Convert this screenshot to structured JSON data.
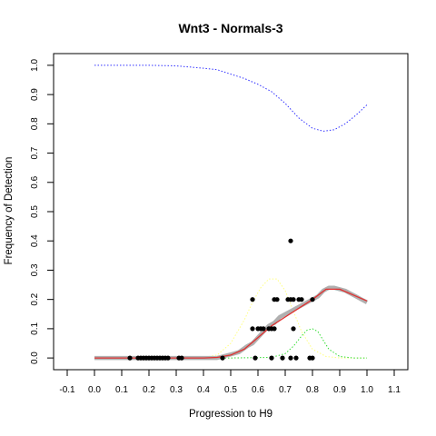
{
  "chart_data": {
    "type": "scatter",
    "title": "Wnt3 - Normals-3",
    "xlabel": "Progression to H9",
    "ylabel": "Frequency of Detection",
    "xlim": [
      -0.15,
      1.15
    ],
    "ylim": [
      -0.04,
      1.04
    ],
    "xticks": [
      -0.1,
      0.0,
      0.1,
      0.2,
      0.3,
      0.4,
      0.5,
      0.6,
      0.7,
      0.8,
      0.9,
      1.0,
      1.1
    ],
    "yticks": [
      0.0,
      0.1,
      0.2,
      0.3,
      0.4,
      0.5,
      0.6,
      0.7,
      0.8,
      0.9,
      1.0
    ],
    "grid": false,
    "legend": "none",
    "colors": {
      "points": "#000000",
      "running_mean": "#b0b0b0",
      "fit": "#e03030",
      "blue_curve": "#3333ff",
      "yellow_curve": "#ffff80",
      "green_curve": "#33dd33",
      "orange_curve": "#ff9900"
    },
    "series": [
      {
        "kind": "points",
        "x": [
          0.13,
          0.16,
          0.17,
          0.18,
          0.19,
          0.2,
          0.21,
          0.22,
          0.23,
          0.24,
          0.25,
          0.26,
          0.27,
          0.31,
          0.32,
          0.47,
          0.59,
          0.65,
          0.69,
          0.72,
          0.74,
          0.79,
          0.8,
          0.58,
          0.6,
          0.61,
          0.62,
          0.64,
          0.65,
          0.66,
          0.73,
          0.58,
          0.66,
          0.67,
          0.71,
          0.72,
          0.73,
          0.75,
          0.76,
          0.8,
          0.72
        ],
        "y": [
          0,
          0,
          0,
          0,
          0,
          0,
          0,
          0,
          0,
          0,
          0,
          0,
          0,
          0,
          0,
          0,
          0,
          0,
          0,
          0,
          0,
          0,
          0,
          0.1,
          0.1,
          0.1,
          0.1,
          0.1,
          0.1,
          0.1,
          0.1,
          0.2,
          0.2,
          0.2,
          0.2,
          0.2,
          0.2,
          0.2,
          0.2,
          0.2,
          0.4
        ]
      },
      {
        "kind": "running_mean",
        "x": [
          0.0,
          0.05,
          0.1,
          0.15,
          0.2,
          0.25,
          0.3,
          0.35,
          0.4,
          0.45,
          0.47,
          0.5,
          0.53,
          0.56,
          0.58,
          0.6,
          0.62,
          0.64,
          0.66,
          0.68,
          0.7,
          0.72,
          0.74,
          0.76,
          0.78,
          0.8,
          0.82,
          0.84,
          0.86,
          0.88,
          0.9,
          0.92,
          0.94,
          0.96,
          0.98,
          1.0
        ],
        "y": [
          0,
          0,
          0,
          0,
          0,
          0,
          0,
          0,
          0,
          0,
          0.005,
          0.012,
          0.02,
          0.04,
          0.05,
          0.07,
          0.09,
          0.11,
          0.12,
          0.14,
          0.15,
          0.16,
          0.17,
          0.18,
          0.19,
          0.2,
          0.21,
          0.23,
          0.24,
          0.24,
          0.235,
          0.23,
          0.22,
          0.21,
          0.2,
          0.19
        ]
      },
      {
        "kind": "fit",
        "x": [
          0.0,
          0.1,
          0.2,
          0.3,
          0.4,
          0.45,
          0.5,
          0.55,
          0.6,
          0.65,
          0.7,
          0.75,
          0.8,
          0.85,
          0.9,
          0.95,
          1.0
        ],
        "y": [
          0,
          0,
          0,
          0,
          0,
          0.002,
          0.01,
          0.03,
          0.07,
          0.11,
          0.14,
          0.17,
          0.2,
          0.235,
          0.235,
          0.215,
          0.195
        ]
      },
      {
        "kind": "blue_dotted",
        "x": [
          0.0,
          0.1,
          0.2,
          0.3,
          0.4,
          0.45,
          0.5,
          0.55,
          0.6,
          0.65,
          0.7,
          0.75,
          0.8,
          0.84,
          0.88,
          0.92,
          0.96,
          1.0
        ],
        "y": [
          1.0,
          1.0,
          1.0,
          0.998,
          0.99,
          0.985,
          0.97,
          0.955,
          0.935,
          0.91,
          0.87,
          0.82,
          0.785,
          0.775,
          0.78,
          0.8,
          0.83,
          0.865
        ]
      },
      {
        "kind": "yellow_dotted",
        "x": [
          0.0,
          0.2,
          0.4,
          0.45,
          0.5,
          0.55,
          0.58,
          0.61,
          0.64,
          0.67,
          0.7,
          0.73,
          0.76,
          0.8,
          0.85,
          0.9,
          0.95,
          1.0
        ],
        "y": [
          0,
          0,
          0.002,
          0.01,
          0.05,
          0.13,
          0.19,
          0.24,
          0.27,
          0.27,
          0.23,
          0.16,
          0.09,
          0.03,
          0.005,
          0,
          0,
          0
        ]
      },
      {
        "kind": "green_dotted",
        "x": [
          0.0,
          0.5,
          0.65,
          0.7,
          0.73,
          0.76,
          0.78,
          0.8,
          0.82,
          0.84,
          0.86,
          0.9,
          0.95,
          1.0
        ],
        "y": [
          0,
          0,
          0.002,
          0.015,
          0.04,
          0.075,
          0.095,
          0.1,
          0.09,
          0.06,
          0.03,
          0.005,
          0,
          0
        ]
      },
      {
        "kind": "orange_dotted",
        "x": [
          0.0,
          0.47
        ],
        "y": [
          0,
          0
        ]
      }
    ]
  }
}
